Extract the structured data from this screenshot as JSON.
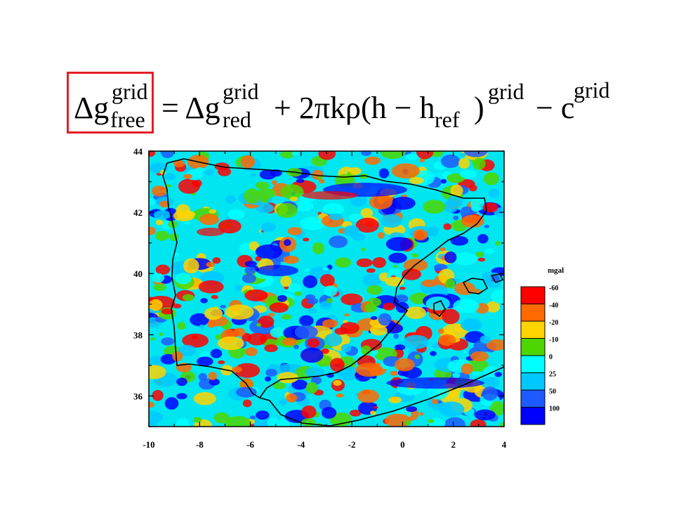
{
  "formula": {
    "delta_g": "Δg",
    "lhs_sup": "grid",
    "lhs_sub": "free",
    "equals_delta_g": "= Δg",
    "red_sup": "grid",
    "red_sub": "red",
    "term2": "+ 2πkρ(h − h",
    "ref_sub": "ref",
    "close_paren": ")",
    "term2_sup": "grid",
    "minus_c": "− c",
    "c_sup": "grid"
  },
  "map": {
    "x_ticks": [
      "-10",
      "-8",
      "-6",
      "-4",
      "-2",
      "0",
      "2",
      "4"
    ],
    "y_ticks": [
      "44",
      "42",
      "40",
      "38",
      "36"
    ],
    "xlim": [
      -10,
      4
    ],
    "ylim": [
      35,
      44
    ]
  },
  "legend": {
    "title": "mgal",
    "entries": [
      {
        "label": "-60",
        "color": "#ff0000"
      },
      {
        "label": "-40",
        "color": "#ff6a00"
      },
      {
        "label": "-20",
        "color": "#ffd400"
      },
      {
        "label": "-10",
        "color": "#4ed600"
      },
      {
        "label": "0",
        "color": "#00ffff"
      },
      {
        "label": "25",
        "color": "#00c8ff"
      },
      {
        "label": "50",
        "color": "#1e5aff"
      },
      {
        "label": "100",
        "color": "#0000ff"
      }
    ]
  }
}
